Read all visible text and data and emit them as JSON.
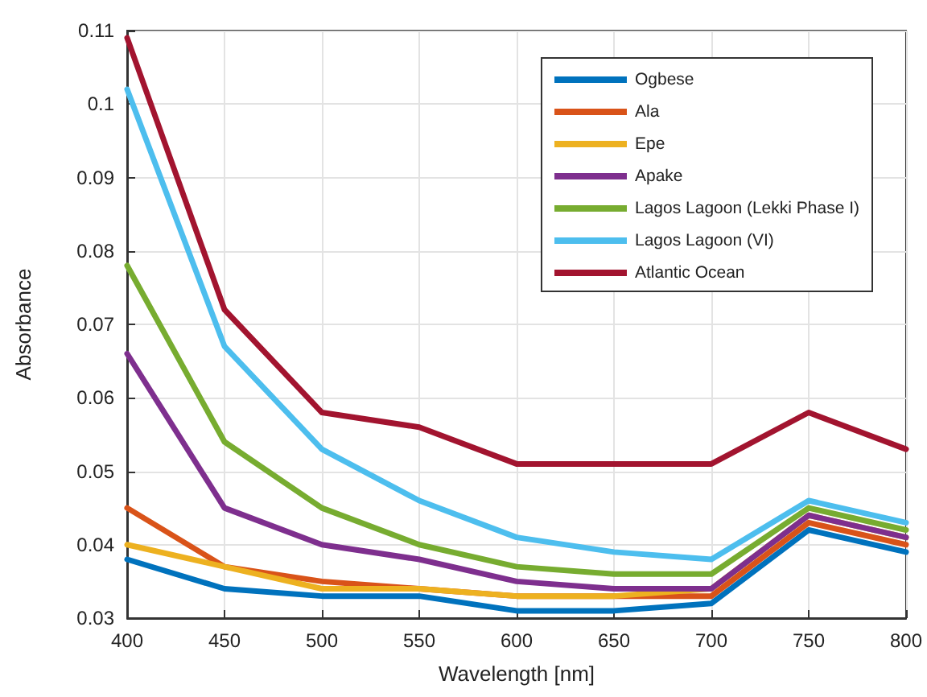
{
  "chart_data": {
    "type": "line",
    "xlabel": "Wavelength [nm]",
    "ylabel": "Absorbance",
    "x": [
      400,
      450,
      500,
      550,
      600,
      650,
      700,
      750,
      800
    ],
    "series": [
      {
        "name": "Ogbese",
        "color": "#0072bd",
        "values": [
          0.038,
          0.034,
          0.033,
          0.033,
          0.031,
          0.031,
          0.032,
          0.042,
          0.039
        ]
      },
      {
        "name": "Ala",
        "color": "#d95319",
        "values": [
          0.045,
          0.037,
          0.035,
          0.034,
          0.033,
          0.033,
          0.033,
          0.043,
          0.04
        ]
      },
      {
        "name": "Epe",
        "color": "#edb120",
        "values": [
          0.04,
          0.037,
          0.034,
          0.034,
          0.033,
          0.033,
          0.034,
          0.044,
          0.041
        ]
      },
      {
        "name": "Apake",
        "color": "#7e2f8e",
        "values": [
          0.066,
          0.045,
          0.04,
          0.038,
          0.035,
          0.034,
          0.034,
          0.044,
          0.041
        ]
      },
      {
        "name": "Lagos Lagoon (Lekki Phase I)",
        "color": "#77ac30",
        "values": [
          0.078,
          0.054,
          0.045,
          0.04,
          0.037,
          0.036,
          0.036,
          0.045,
          0.042
        ]
      },
      {
        "name": "Lagos Lagoon (VI)",
        "color": "#4dbeee",
        "values": [
          0.102,
          0.067,
          0.053,
          0.046,
          0.041,
          0.039,
          0.038,
          0.046,
          0.043
        ]
      },
      {
        "name": "Atlantic Ocean",
        "color": "#a2142f",
        "values": [
          0.109,
          0.072,
          0.058,
          0.056,
          0.051,
          0.051,
          0.051,
          0.058,
          0.053
        ]
      }
    ],
    "xlim": [
      400,
      800
    ],
    "xticks": [
      400,
      450,
      500,
      550,
      600,
      650,
      700,
      750,
      800
    ],
    "ylim": [
      0.03,
      0.11
    ],
    "yticks": [
      0.03,
      0.04,
      0.05,
      0.06,
      0.07,
      0.08,
      0.09,
      0.1,
      0.11
    ],
    "grid": true,
    "legend": "top right",
    "marker": "none",
    "line_style": "solid"
  }
}
